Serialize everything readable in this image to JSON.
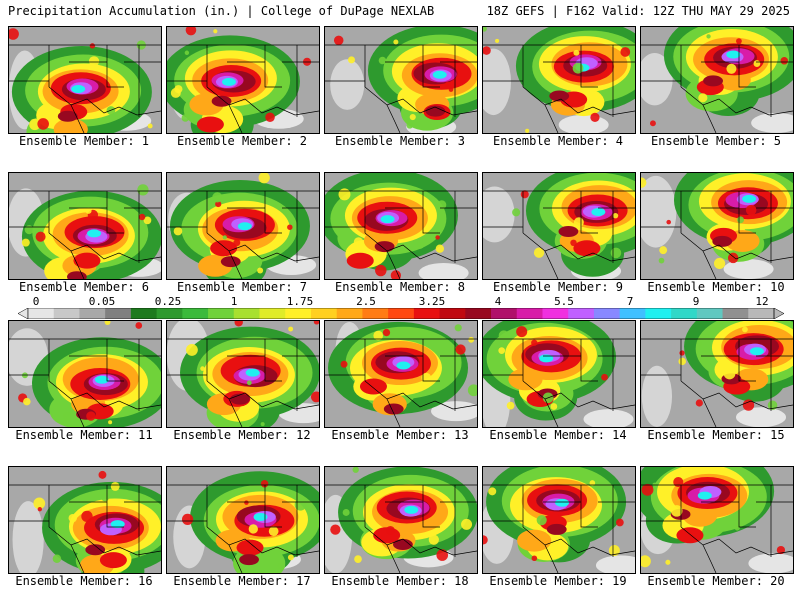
{
  "header": {
    "title_left": "Precipitation Accumulation (in.) | College of DuPage NEXLAB",
    "title_right": "18Z GEFS | F162 Valid: 12Z THU MAY 29 2025"
  },
  "panels": [
    {
      "label": "Ensemble Member: 1"
    },
    {
      "label": "Ensemble Member: 2"
    },
    {
      "label": "Ensemble Member: 3"
    },
    {
      "label": "Ensemble Member: 4"
    },
    {
      "label": "Ensemble Member: 5"
    },
    {
      "label": "Ensemble Member: 6"
    },
    {
      "label": "Ensemble Member: 7"
    },
    {
      "label": "Ensemble Member: 8"
    },
    {
      "label": "Ensemble Member: 9"
    },
    {
      "label": "Ensemble Member: 10"
    },
    {
      "label": "Ensemble Member: 11"
    },
    {
      "label": "Ensemble Member: 12"
    },
    {
      "label": "Ensemble Member: 13"
    },
    {
      "label": "Ensemble Member: 14"
    },
    {
      "label": "Ensemble Member: 15"
    },
    {
      "label": "Ensemble Member: 16"
    },
    {
      "label": "Ensemble Member: 17"
    },
    {
      "label": "Ensemble Member: 18"
    },
    {
      "label": "Ensemble Member: 19"
    },
    {
      "label": "Ensemble Member: 20"
    }
  ],
  "colorbar": {
    "tick_labels": [
      "0",
      "0.05",
      "0.25",
      "1",
      "1.75",
      "2.5",
      "3.25",
      "4",
      "5.5",
      "7",
      "9",
      "12"
    ],
    "colors": [
      "#e6e6e6",
      "#c8c8c8",
      "#a8a8a8",
      "#808080",
      "#1e7a1e",
      "#2e9a2e",
      "#3cba3c",
      "#70d23a",
      "#a8e030",
      "#e0ec28",
      "#fff028",
      "#ffd020",
      "#ffa818",
      "#ff7c14",
      "#ff4810",
      "#e81010",
      "#c00810",
      "#980820",
      "#b0106a",
      "#d81ca8",
      "#f030e0",
      "#c060ff",
      "#8888ff",
      "#40c0ff",
      "#20f0f0",
      "#30d8c8",
      "#60c8c0",
      "#909090",
      "#b8b8b8"
    ]
  },
  "map_colors": {
    "background": "#a8a8a8",
    "green": "#2e9a2e",
    "light_green": "#70d23a",
    "yellow": "#fff028",
    "orange": "#ffa818",
    "red": "#e81010",
    "dark_red": "#980820",
    "magenta": "#d81ca8",
    "violet": "#c060ff",
    "cyan": "#20f0f0",
    "light_gray": "#e0e0e0",
    "borders": "#000000"
  }
}
